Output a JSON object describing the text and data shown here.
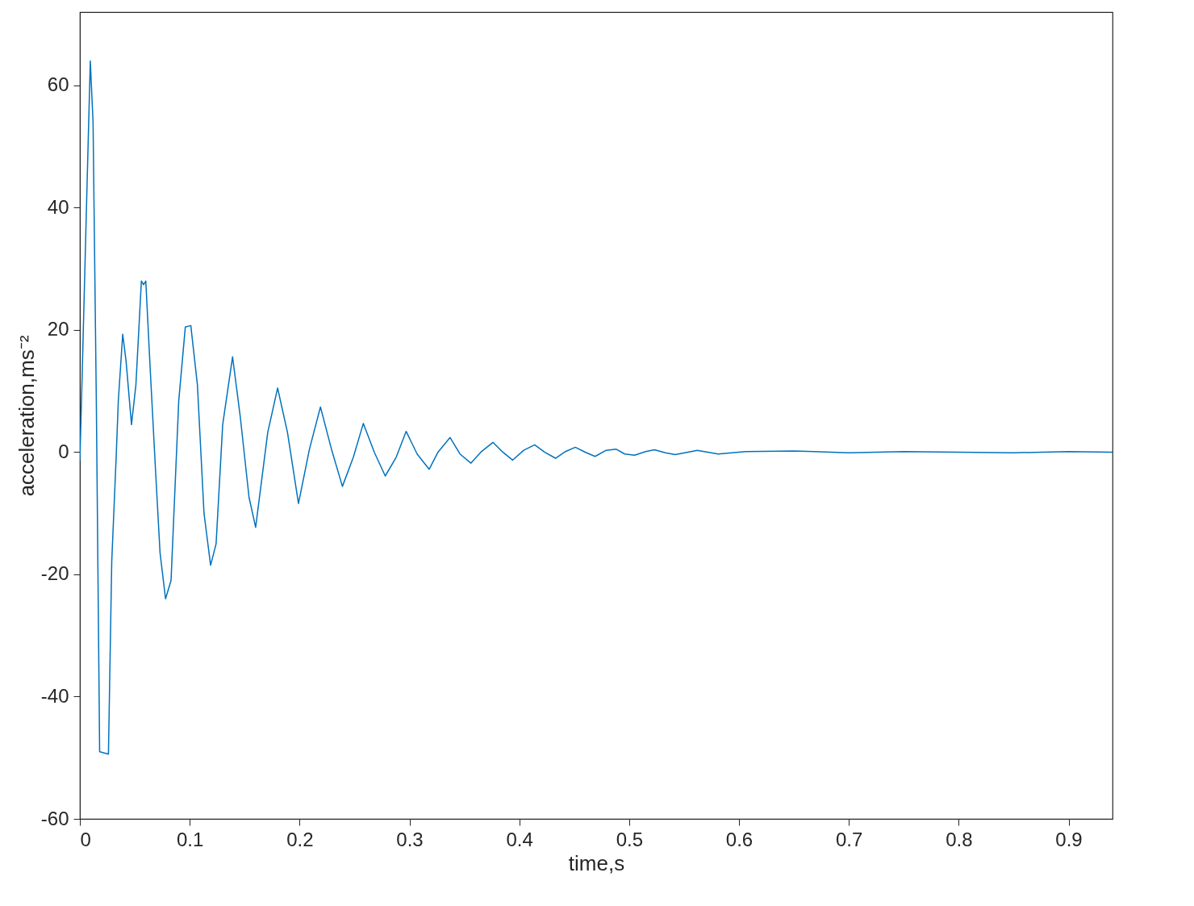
{
  "chart_data": {
    "type": "line",
    "xlabel": "time,s",
    "ylabel": "acceleration,ms⁻²",
    "xlim": [
      0,
      0.94
    ],
    "ylim": [
      -60,
      72
    ],
    "xticks": [
      0,
      0.1,
      0.2,
      0.3,
      0.4,
      0.5,
      0.6,
      0.7,
      0.8,
      0.9
    ],
    "yticks": [
      -60,
      -40,
      -20,
      0,
      20,
      40,
      60
    ],
    "grid": false,
    "marker": "none",
    "line_style": "solid",
    "x": [
      0,
      0.002,
      0.006,
      0.0095,
      0.012,
      0.015,
      0.018,
      0.026,
      0.029,
      0.033,
      0.035,
      0.039,
      0.042,
      0.047,
      0.051,
      0.056,
      0.058,
      0.06,
      0.064,
      0.069,
      0.073,
      0.078,
      0.083,
      0.09,
      0.096,
      0.101,
      0.107,
      0.113,
      0.119,
      0.124,
      0.13,
      0.139,
      0.146,
      0.154,
      0.16,
      0.171,
      0.18,
      0.189,
      0.199,
      0.209,
      0.219,
      0.229,
      0.239,
      0.249,
      0.258,
      0.268,
      0.278,
      0.288,
      0.297,
      0.307,
      0.318,
      0.326,
      0.337,
      0.346,
      0.356,
      0.365,
      0.376,
      0.385,
      0.394,
      0.404,
      0.414,
      0.423,
      0.433,
      0.442,
      0.451,
      0.46,
      0.469,
      0.479,
      0.488,
      0.496,
      0.505,
      0.515,
      0.523,
      0.533,
      0.542,
      0.562,
      0.581,
      0.606,
      0.65,
      0.7,
      0.75,
      0.8,
      0.85,
      0.9,
      0.94
    ],
    "series": [
      {
        "color": "#0072bd",
        "values": [
          -1.4,
          12,
          40,
          64,
          54,
          8,
          -49,
          -49.4,
          -18,
          -1,
          8.4,
          19.3,
          15,
          4.5,
          11,
          28,
          27.4,
          28,
          13.7,
          -3.4,
          -16.5,
          -24,
          -21,
          8.4,
          20.5,
          20.7,
          11,
          -10,
          -18.5,
          -15,
          4.5,
          15.6,
          5.8,
          -7.4,
          -12.3,
          3.2,
          10.5,
          3.2,
          -8.4,
          0.5,
          7.4,
          0.5,
          -5.6,
          -0.8,
          4.7,
          0,
          -3.9,
          -0.8,
          3.4,
          -0.3,
          -2.8,
          0,
          2.4,
          -0.3,
          -1.8,
          0,
          1.6,
          0,
          -1.3,
          0.3,
          1.2,
          0,
          -1,
          0.1,
          0.8,
          0,
          -0.7,
          0.3,
          0.5,
          -0.3,
          -0.5,
          0.1,
          0.4,
          -0.1,
          -0.4,
          0.3,
          -0.3,
          0.1,
          0.2,
          -0.1,
          0.1,
          0,
          -0.1,
          0.1,
          0
        ]
      }
    ]
  }
}
